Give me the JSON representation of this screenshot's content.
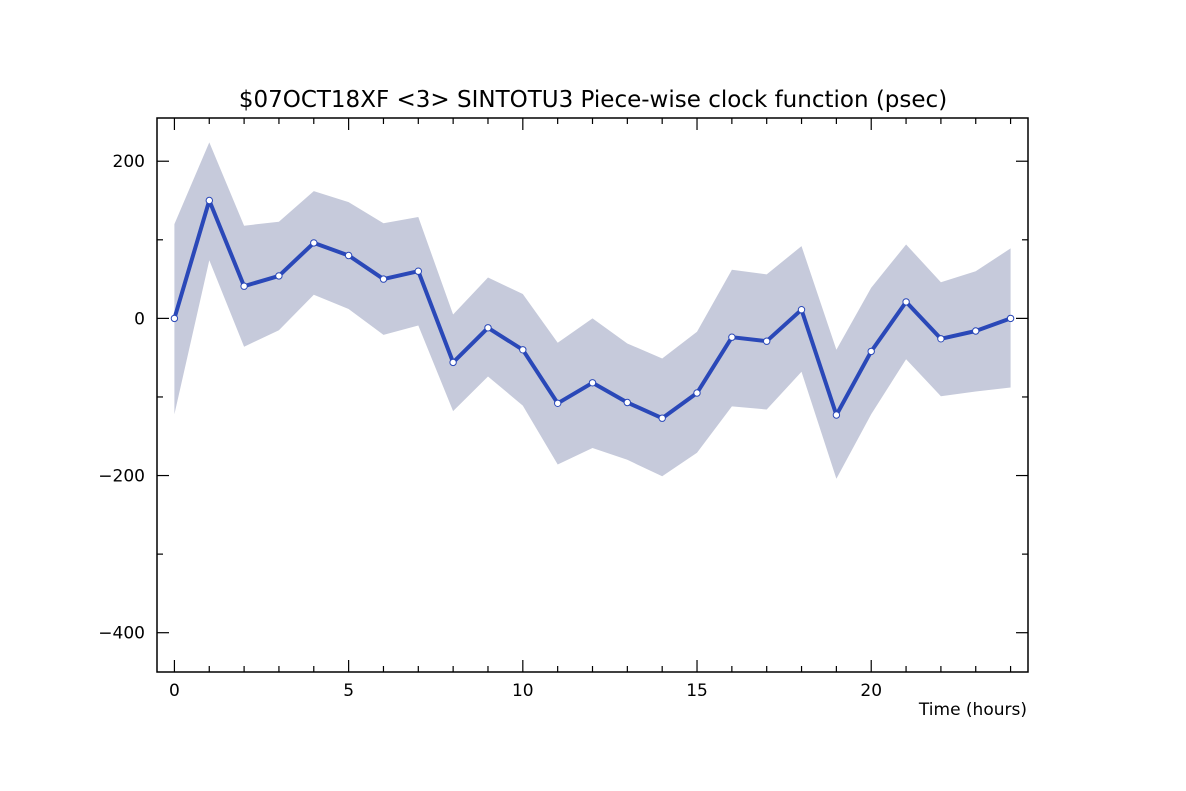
{
  "chart_data": {
    "type": "line",
    "title": "$07OCT18XF <3>  SINTOTU3  Piece-wise clock function (psec)",
    "xlabel": "Time (hours)",
    "ylabel": "",
    "xlim": [
      -0.5,
      24.5
    ],
    "ylim": [
      -450,
      255
    ],
    "xticks_major": [
      0,
      5,
      10,
      15,
      20
    ],
    "xtick_labels": [
      "0",
      "5",
      "10",
      "15",
      "20"
    ],
    "yticks_major": [
      200,
      0,
      -200,
      -400
    ],
    "ytick_labels": [
      "200",
      "0",
      "−200",
      "−400"
    ],
    "grid": false,
    "legend": "none",
    "colors": {
      "line": "#2a48b8",
      "band": "#c6cadb",
      "marker_fill": "#ffffff",
      "axis": "#000000"
    },
    "series": [
      {
        "x": [
          0,
          1,
          2,
          3,
          4,
          5,
          6,
          7,
          8,
          9,
          10,
          11,
          12,
          13,
          14,
          15,
          16,
          17,
          18,
          19,
          20,
          21,
          22,
          23,
          24
        ],
        "y": [
          0,
          150,
          41,
          54,
          96,
          80,
          50,
          60,
          -56,
          -12,
          -40,
          -108,
          -82,
          -107,
          -127,
          -95,
          -24,
          -29,
          11,
          -123,
          -42,
          21,
          -26,
          -16,
          0
        ],
        "upper": [
          120,
          224,
          118,
          123,
          162,
          148,
          121,
          129,
          5,
          52,
          31,
          -31,
          0,
          -32,
          -51,
          -17,
          62,
          56,
          92,
          -40,
          39,
          94,
          46,
          60,
          89
        ],
        "lower": [
          -122,
          74,
          -36,
          -15,
          30,
          12,
          -21,
          -9,
          -118,
          -74,
          -111,
          -186,
          -165,
          -180,
          -201,
          -171,
          -112,
          -116,
          -68,
          -204,
          -122,
          -52,
          -99,
          -93,
          -88
        ]
      }
    ]
  }
}
